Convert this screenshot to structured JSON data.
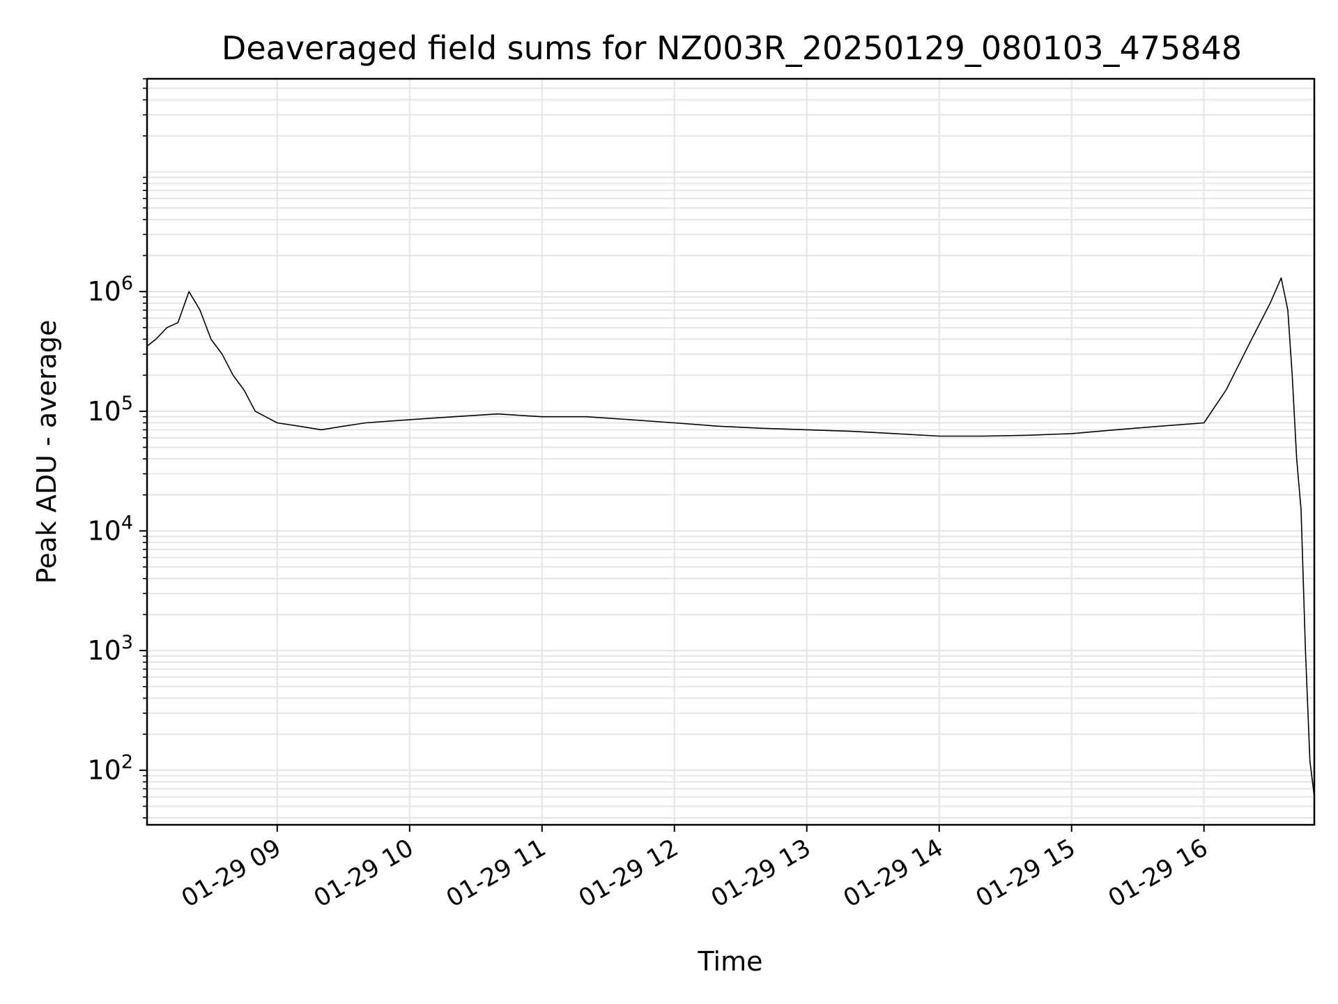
{
  "chart_data": {
    "type": "line",
    "title": "Deaveraged field sums for NZ003R_20250129_080103_475848",
    "xlabel": "Time",
    "ylabel": "Peak ADU - average",
    "yscale": "log",
    "grid": true,
    "legend": "none",
    "line_color": "#000000",
    "xlim": [
      "2025-01-29 08:01",
      "2025-01-29 16:50"
    ],
    "ylim": [
      35,
      60000000
    ],
    "x_ticks": [
      {
        "t": "2025-01-29 09:00",
        "label": "01-29 09"
      },
      {
        "t": "2025-01-29 10:00",
        "label": "01-29 10"
      },
      {
        "t": "2025-01-29 11:00",
        "label": "01-29 11"
      },
      {
        "t": "2025-01-29 12:00",
        "label": "01-29 12"
      },
      {
        "t": "2025-01-29 13:00",
        "label": "01-29 13"
      },
      {
        "t": "2025-01-29 14:00",
        "label": "01-29 14"
      },
      {
        "t": "2025-01-29 15:00",
        "label": "01-29 15"
      },
      {
        "t": "2025-01-29 16:00",
        "label": "01-29 16"
      }
    ],
    "y_ticks": [
      {
        "value": 100,
        "base": "10",
        "exp": "2"
      },
      {
        "value": 1000,
        "base": "10",
        "exp": "3"
      },
      {
        "value": 10000,
        "base": "10",
        "exp": "4"
      },
      {
        "value": 100000,
        "base": "10",
        "exp": "5"
      },
      {
        "value": 1000000,
        "base": "10",
        "exp": "6"
      }
    ],
    "series": [
      {
        "x": [
          "2025-01-29 08:01",
          "2025-01-29 08:05",
          "2025-01-29 08:10",
          "2025-01-29 08:15",
          "2025-01-29 08:20",
          "2025-01-29 08:25",
          "2025-01-29 08:30",
          "2025-01-29 08:35",
          "2025-01-29 08:40",
          "2025-01-29 08:45",
          "2025-01-29 08:50",
          "2025-01-29 09:00",
          "2025-01-29 09:10",
          "2025-01-29 09:20",
          "2025-01-29 09:30",
          "2025-01-29 09:40",
          "2025-01-29 10:00",
          "2025-01-29 10:20",
          "2025-01-29 10:40",
          "2025-01-29 11:00",
          "2025-01-29 11:20",
          "2025-01-29 11:40",
          "2025-01-29 12:00",
          "2025-01-29 12:20",
          "2025-01-29 12:40",
          "2025-01-29 13:00",
          "2025-01-29 13:20",
          "2025-01-29 13:40",
          "2025-01-29 14:00",
          "2025-01-29 14:20",
          "2025-01-29 14:40",
          "2025-01-29 15:00",
          "2025-01-29 15:20",
          "2025-01-29 15:40",
          "2025-01-29 16:00",
          "2025-01-29 16:10",
          "2025-01-29 16:20",
          "2025-01-29 16:30",
          "2025-01-29 16:35",
          "2025-01-29 16:38",
          "2025-01-29 16:40",
          "2025-01-29 16:42",
          "2025-01-29 16:44",
          "2025-01-29 16:46",
          "2025-01-29 16:48",
          "2025-01-29 16:50"
        ],
        "y": [
          350000,
          400000,
          500000,
          550000,
          1000000,
          700000,
          400000,
          300000,
          200000,
          150000,
          100000,
          80000,
          75000,
          70000,
          75000,
          80000,
          85000,
          90000,
          95000,
          90000,
          90000,
          85000,
          80000,
          75000,
          72000,
          70000,
          68000,
          65000,
          62000,
          62000,
          63000,
          65000,
          70000,
          75000,
          80000,
          150000,
          350000,
          800000,
          1300000,
          700000,
          200000,
          40000,
          15000,
          1000,
          120,
          60
        ]
      }
    ]
  }
}
